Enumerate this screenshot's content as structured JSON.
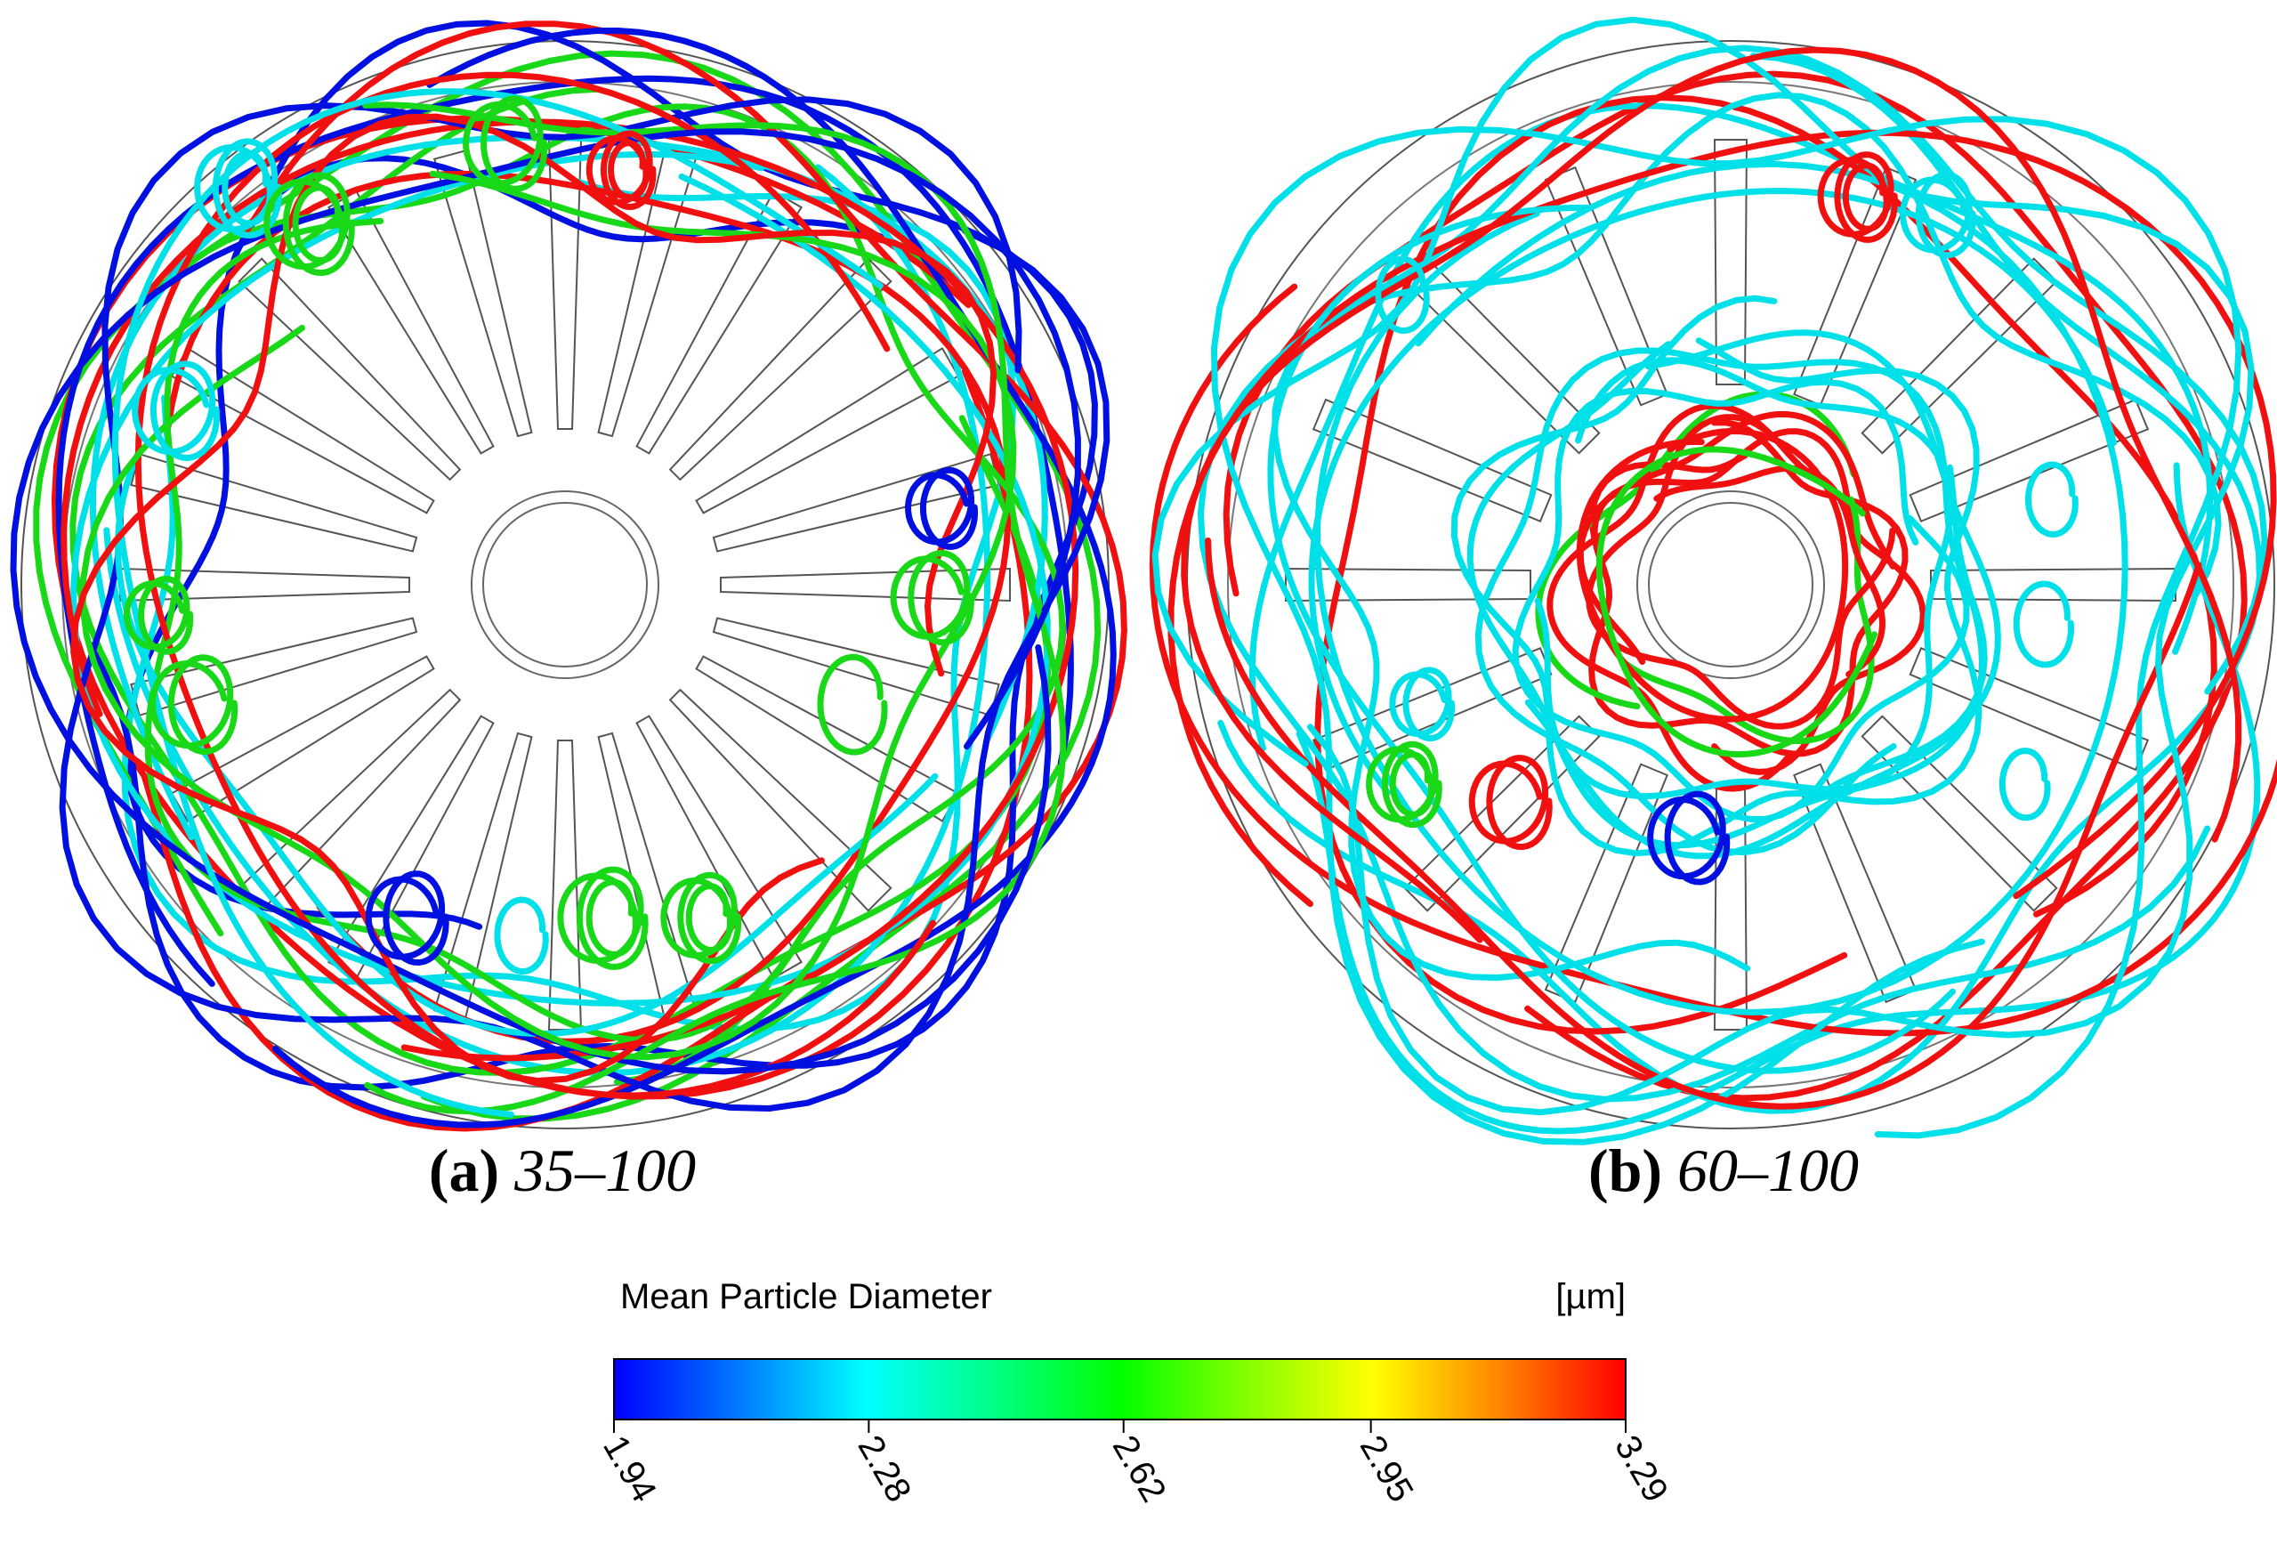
{
  "panels": [
    {
      "label": "(a)",
      "range": "35–100"
    },
    {
      "label": "(b)",
      "range": "60–100"
    }
  ],
  "colorbar": {
    "title": "Mean Particle Diameter",
    "unit": "[µm]",
    "ticks": [
      1.94,
      2.28,
      2.62,
      2.95,
      3.29
    ]
  }
}
